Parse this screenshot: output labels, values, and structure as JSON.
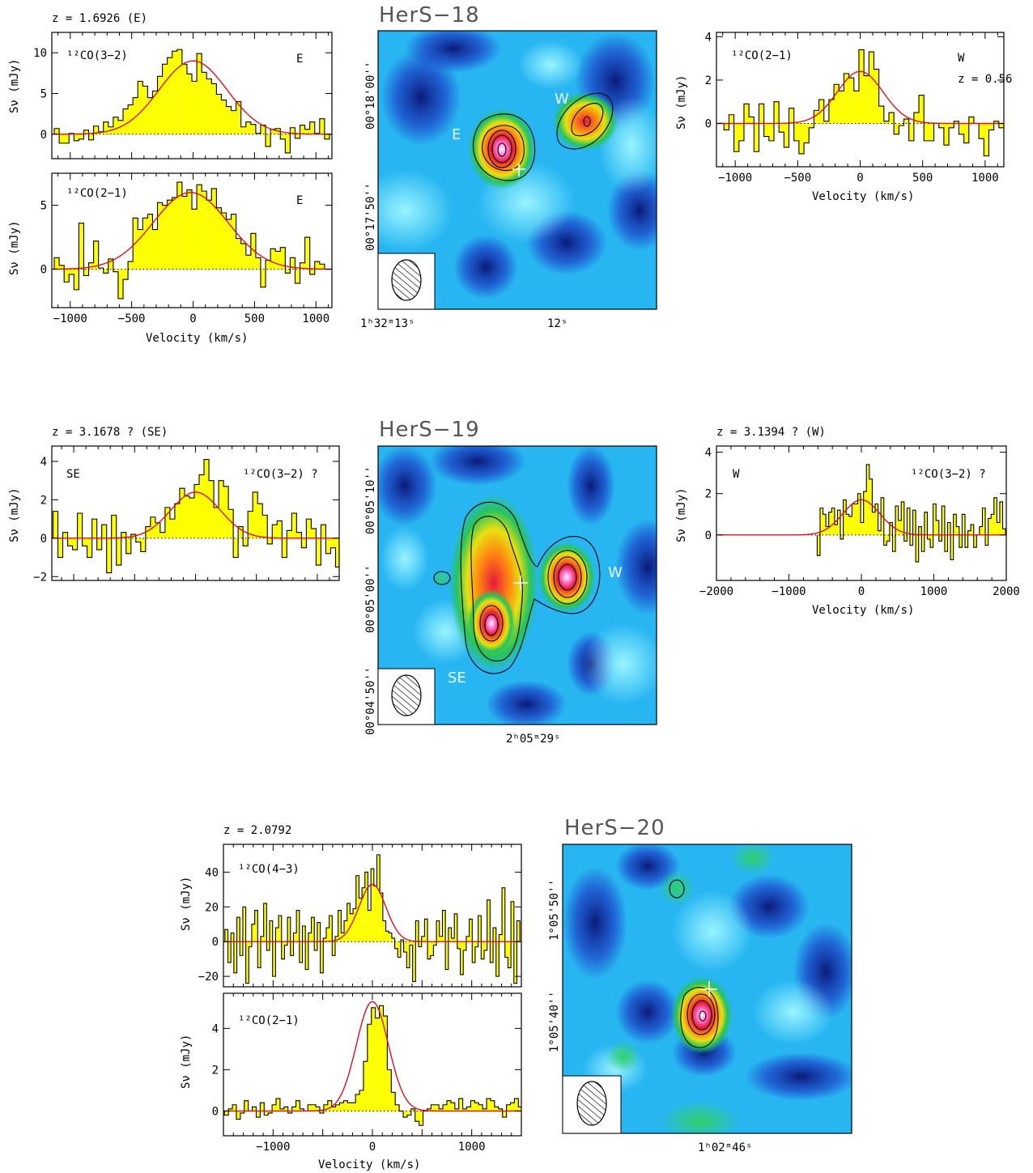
{
  "figure_blocks": [
    {
      "map": {
        "title": "HerS−18",
        "ylabels": [
          "00°18'00''",
          "00°17'50''"
        ],
        "xlabels": [
          "1ʰ32ᵐ13ˢ",
          "12ˢ"
        ],
        "source_labels": [
          "E",
          "W"
        ]
      },
      "spectra": [
        {
          "redshift": "z = 1.6926 (E)",
          "line": "¹²CO(3−2)",
          "component": "E",
          "ylabel": "Sν (mJy)"
        },
        {
          "redshift": "",
          "line": "¹²CO(2−1)",
          "component": "E",
          "ylabel": "Sν (mJy)",
          "xlabel": "Velocity (km/s)"
        },
        {
          "redshift": "",
          "line": "¹²CO(2−1)",
          "component": "W",
          "extra": "z = 0.56",
          "ylabel": "Sν (mJy)",
          "xlabel": "Velocity (km/s)"
        }
      ]
    },
    {
      "map": {
        "title": "HerS−19",
        "ylabels": [
          "00°05'10''",
          "00°05'00''",
          "00°04'50''"
        ],
        "xlabels": [
          "2ʰ05ᵐ29ˢ"
        ],
        "source_labels": [
          "W",
          "SE"
        ]
      },
      "spectra": [
        {
          "redshift": "z = 3.1678 ? (SE)",
          "line": "¹²CO(3−2) ?",
          "component": "SE",
          "ylabel": "Sν (mJy)"
        },
        {
          "redshift": "z = 3.1394 ? (W)",
          "line": "¹²CO(3−2) ?",
          "component": "W",
          "ylabel": "Sν (mJy)",
          "xlabel": "Velocity (km/s)"
        }
      ]
    },
    {
      "map": {
        "title": "HerS−20",
        "ylabels": [
          "1°05'50''",
          "1°05'40''"
        ],
        "xlabels": [
          "1ʰ02ᵐ46ˢ"
        ],
        "source_labels": []
      },
      "spectra": [
        {
          "redshift": "z = 2.0792",
          "line": "¹²CO(4−3)",
          "component": "",
          "ylabel": "Sν (mJy)"
        },
        {
          "redshift": "",
          "line": "¹²CO(2−1)",
          "component": "",
          "ylabel": "Sν (mJy)",
          "xlabel": "Velocity (km/s)"
        }
      ]
    }
  ],
  "chart_data": [
    {
      "type": "area",
      "title": "z = 1.6926 (E)",
      "series": [
        {
          "name": "¹²CO(3−2)"
        }
      ],
      "xlim": [
        -1150,
        1130
      ],
      "ylim": [
        -3,
        12.5
      ],
      "yticks": [
        0,
        5,
        10
      ],
      "xticks": [],
      "gauss": {
        "amp": 9,
        "center": 0,
        "fwhm": 650
      },
      "x": [
        -1110,
        -1070,
        -1030,
        -990,
        -950,
        -910,
        -870,
        -830,
        -790,
        -750,
        -710,
        -670,
        -630,
        -590,
        -550,
        -510,
        -470,
        -430,
        -390,
        -350,
        -310,
        -270,
        -230,
        -190,
        -150,
        -110,
        -70,
        -30,
        10,
        50,
        90,
        130,
        170,
        210,
        250,
        290,
        330,
        370,
        410,
        450,
        490,
        530,
        570,
        610,
        650,
        690,
        730,
        770,
        810,
        850,
        890,
        930,
        970,
        1010,
        1050,
        1090
      ],
      "y": [
        0.7,
        -1.1,
        -1.1,
        0.1,
        -0.8,
        -0.6,
        0.5,
        -0.7,
        1.0,
        0.3,
        1.5,
        0.9,
        2.1,
        1.7,
        3.1,
        3.6,
        4.5,
        6.5,
        5.9,
        4.5,
        5.3,
        7.1,
        8.6,
        9.4,
        10.2,
        10.4,
        8.6,
        7.4,
        6.5,
        9.9,
        7.6,
        6.8,
        6.2,
        4.9,
        4.2,
        3.4,
        2.9,
        4.0,
        0.9,
        1.5,
        1.2,
        0.1,
        1.1,
        -1.5,
        0.6,
        0.7,
        -0.6,
        -2.3,
        0.8,
        -0.5,
        1.1,
        0.6,
        1.5,
        0.1,
        1.9,
        -0.6
      ]
    },
    {
      "type": "area",
      "series": [
        {
          "name": "¹²CO(2−1)"
        }
      ],
      "xlim": [
        -1150,
        1130
      ],
      "ylim": [
        -3,
        7.5
      ],
      "yticks": [
        0,
        5
      ],
      "xticks": [
        -1000,
        -500,
        0,
        500,
        1000
      ],
      "gauss": {
        "amp": 6,
        "center": -20,
        "fwhm": 720
      },
      "x": [
        -1110,
        -1070,
        -1030,
        -990,
        -950,
        -910,
        -870,
        -830,
        -790,
        -750,
        -710,
        -670,
        -630,
        -590,
        -550,
        -510,
        -470,
        -430,
        -390,
        -350,
        -310,
        -270,
        -230,
        -190,
        -150,
        -110,
        -70,
        -30,
        10,
        50,
        90,
        130,
        170,
        210,
        250,
        290,
        330,
        370,
        410,
        450,
        490,
        530,
        570,
        610,
        650,
        690,
        730,
        770,
        810,
        850,
        890,
        930,
        970,
        1010,
        1050,
        1090
      ],
      "y": [
        0.9,
        0.3,
        -1.0,
        -0.4,
        -1.6,
        3.6,
        -0.5,
        0.5,
        2.2,
        0.1,
        -0.3,
        0.8,
        -0.2,
        -2.3,
        -0.8,
        0.6,
        4.0,
        3.1,
        4.0,
        4.3,
        3.1,
        5.2,
        5.0,
        5.4,
        5.6,
        6.8,
        5.7,
        6.2,
        4.7,
        6.6,
        6.1,
        5.4,
        6.3,
        4.8,
        4.4,
        3.9,
        4.3,
        2.4,
        2.0,
        1.1,
        2.8,
        0.9,
        -1.4,
        0.7,
        1.6,
        1.4,
        1.7,
        -0.3,
        0.9,
        -1.1,
        0.5,
        2.5,
        -0.4,
        0.6,
        0.4,
        0.0
      ]
    },
    {
      "type": "area",
      "series": [
        {
          "name": "¹²CO(2−1)"
        }
      ],
      "xlim": [
        -1150,
        1150
      ],
      "ylim": [
        -2,
        4.2
      ],
      "yticks": [
        0,
        2,
        4
      ],
      "xticks": [
        -1000,
        -500,
        0,
        500,
        1000
      ],
      "gauss": {
        "amp": 2.4,
        "center": 0,
        "fwhm": 430
      },
      "x": [
        -1110,
        -1070,
        -1030,
        -990,
        -950,
        -910,
        -870,
        -830,
        -790,
        -750,
        -710,
        -670,
        -630,
        -590,
        -550,
        -510,
        -470,
        -430,
        -390,
        -350,
        -310,
        -270,
        -230,
        -190,
        -150,
        -110,
        -70,
        -30,
        10,
        50,
        90,
        130,
        170,
        210,
        250,
        290,
        330,
        370,
        410,
        450,
        490,
        530,
        570,
        610,
        650,
        690,
        730,
        770,
        810,
        850,
        890,
        930,
        970,
        1010,
        1050,
        1090,
        1130
      ],
      "y": [
        0.0,
        -0.3,
        0.4,
        -1.3,
        -0.8,
        0.9,
        0.3,
        -1.3,
        0.9,
        -0.6,
        -0.8,
        1.0,
        -0.4,
        -1.1,
        0.7,
        -0.8,
        -1.4,
        -0.9,
        -0.2,
        0.6,
        1.1,
        0.1,
        1.1,
        1.8,
        1.5,
        2.3,
        2.1,
        1.5,
        3.4,
        2.2,
        3.3,
        2.5,
        0.8,
        0.1,
        0.5,
        -0.5,
        -0.1,
        0.2,
        -0.8,
        0.5,
        1.3,
        -0.8,
        -0.8,
        0.0,
        -0.2,
        -1.0,
        -0.2,
        0.1,
        -0.5,
        -0.9,
        0.3,
        0.0,
        -0.7,
        -1.5,
        -0.3,
        0.1,
        -0.2
      ]
    },
    {
      "type": "area",
      "title": "z = 3.1678 ? (SE)",
      "series": [
        {
          "name": "¹²CO(3−2) ?"
        }
      ],
      "xlim": [
        -1180,
        1180
      ],
      "ylim": [
        -2.2,
        4.8
      ],
      "yticks": [
        -2,
        0,
        2,
        4
      ],
      "xticks": [],
      "gauss": {
        "amp": 2.4,
        "center": 0,
        "fwhm": 480
      },
      "x": [
        -1150,
        -1110,
        -1070,
        -1030,
        -990,
        -950,
        -910,
        -870,
        -830,
        -790,
        -750,
        -710,
        -670,
        -630,
        -590,
        -550,
        -510,
        -470,
        -430,
        -390,
        -350,
        -310,
        -270,
        -230,
        -190,
        -150,
        -110,
        -70,
        -30,
        10,
        50,
        90,
        130,
        170,
        210,
        250,
        290,
        330,
        370,
        410,
        450,
        490,
        530,
        570,
        610,
        650,
        690,
        730,
        770,
        810,
        850,
        890,
        930,
        970,
        1010,
        1050,
        1090,
        1130,
        1170
      ],
      "y": [
        1.4,
        -1.0,
        0.3,
        -0.4,
        -0.6,
        1.3,
        -0.4,
        -1.0,
        1.0,
        -0.6,
        0.7,
        -1.8,
        1.2,
        -1.4,
        0.3,
        -0.8,
        0.2,
        -0.2,
        -0.7,
        0.6,
        1.1,
        0.8,
        0.3,
        1.6,
        1.0,
        1.8,
        2.6,
        2.2,
        2.1,
        2.8,
        3.3,
        4.1,
        3.0,
        1.6,
        3.0,
        2.7,
        1.5,
        -1.0,
        0.6,
        -0.4,
        1.4,
        2.4,
        1.8,
        1.2,
        -0.3,
        0.7,
        0.9,
        -1.0,
        0.4,
        1.3,
        0.3,
        -0.5,
        1.0,
        0.5,
        -1.4,
        0.7,
        -0.8,
        -0.5,
        -1.5
      ]
    },
    {
      "type": "area",
      "title": "z = 3.1394 ? (W)",
      "series": [
        {
          "name": "¹²CO(3−2) ?"
        }
      ],
      "xlim": [
        -2000,
        2000
      ],
      "ylim": [
        -2.2,
        4.3
      ],
      "yticks": [
        0,
        2,
        4
      ],
      "xticks": [
        -2000,
        -1000,
        0,
        1000,
        2000
      ],
      "gauss": {
        "amp": 1.7,
        "center": 0,
        "fwhm": 600
      },
      "x": [
        -590,
        -550,
        -510,
        -470,
        -430,
        -390,
        -350,
        -310,
        -270,
        -230,
        -190,
        -150,
        -110,
        -70,
        -30,
        10,
        50,
        90,
        130,
        170,
        210,
        250,
        290,
        330,
        370,
        410,
        450,
        490,
        530,
        570,
        610,
        650,
        690,
        730,
        770,
        810,
        850,
        890,
        930,
        970,
        1010,
        1050,
        1090,
        1130,
        1170,
        1210,
        1250,
        1290,
        1330,
        1370,
        1410,
        1450,
        1490,
        1530,
        1570,
        1610,
        1650,
        1690,
        1730,
        1770,
        1810,
        1850,
        1890,
        1930,
        1970
      ],
      "y": [
        -1.0,
        1.3,
        1.0,
        0.4,
        1.1,
        1.3,
        0.5,
        1.2,
        -0.2,
        1.7,
        1.0,
        0.9,
        1.5,
        1.5,
        2.0,
        0.6,
        2.1,
        3.4,
        2.7,
        1.1,
        1.5,
        0.2,
        1.8,
        -0.5,
        -0.3,
        0.6,
        -0.8,
        1.4,
        0.7,
        1.6,
        -0.3,
        1.3,
        -0.5,
        1.2,
        -1.3,
        0.4,
        -0.8,
        1.1,
        -0.2,
        -0.6,
        1.5,
        0.7,
        -0.3,
        1.4,
        -0.8,
        0.6,
        -1.2,
        1.0,
        0.4,
        -0.6,
        1.0,
        -0.6,
        0.2,
        0.5,
        -0.6,
        0.0,
        0.4,
        1.3,
        -0.5,
        0.8,
        1.0,
        1.8,
        0.6,
        1.6,
        0.3
      ]
    },
    {
      "type": "area",
      "title": "z = 2.0792",
      "series": [
        {
          "name": "¹²CO(4−3)"
        }
      ],
      "xlim": [
        -1500,
        1500
      ],
      "ylim": [
        -26,
        56
      ],
      "yticks": [
        -20,
        0,
        20,
        40
      ],
      "xticks": [],
      "gauss": {
        "amp": 33,
        "center": 0,
        "fwhm": 320
      },
      "x": [
        -1470,
        -1440,
        -1410,
        -1380,
        -1350,
        -1320,
        -1290,
        -1260,
        -1230,
        -1200,
        -1170,
        -1140,
        -1110,
        -1080,
        -1050,
        -1020,
        -990,
        -960,
        -930,
        -900,
        -870,
        -840,
        -810,
        -780,
        -750,
        -720,
        -690,
        -660,
        -630,
        -600,
        -570,
        -540,
        -510,
        -480,
        -450,
        -420,
        -390,
        -360,
        -330,
        -300,
        -270,
        -240,
        -210,
        -180,
        -150,
        -120,
        -90,
        -60,
        -30,
        0,
        30,
        60,
        90,
        120,
        150,
        180,
        210,
        240,
        270,
        300,
        330,
        360,
        390,
        420,
        450,
        480,
        510,
        540,
        570,
        600,
        630,
        660,
        690,
        720,
        750,
        780,
        810,
        840,
        870,
        900,
        930,
        960,
        990,
        1020,
        1050,
        1080,
        1110,
        1140,
        1170,
        1200,
        1230,
        1260,
        1290,
        1320,
        1350,
        1380,
        1410,
        1440,
        1470
      ],
      "y": [
        7,
        -12,
        5,
        -18,
        14,
        -8,
        20,
        -24,
        -3,
        10,
        18,
        -15,
        3,
        22,
        -5,
        12,
        -20,
        8,
        15,
        -10,
        -2,
        14,
        -8,
        5,
        18,
        -12,
        9,
        -16,
        5,
        14,
        -5,
        11,
        -18,
        2,
        8,
        15,
        -8,
        3,
        18,
        5,
        12,
        22,
        16,
        19,
        38,
        25,
        31,
        40,
        18,
        42,
        32,
        50,
        28,
        12,
        6,
        5,
        2,
        -4,
        -9,
        1,
        -6,
        -15,
        -2,
        -23,
        12,
        -3,
        3,
        13,
        -10,
        -8,
        -2,
        12,
        3,
        18,
        -16,
        8,
        2,
        16,
        -4,
        -19,
        -5,
        3,
        13,
        -12,
        -3,
        15,
        -10,
        -5,
        24,
        -12,
        8,
        -20,
        4,
        31,
        -9,
        -15,
        23,
        -24,
        12
      ]
    },
    {
      "type": "area",
      "series": [
        {
          "name": "¹²CO(2−1)"
        }
      ],
      "xlim": [
        -1500,
        1500
      ],
      "ylim": [
        -1.2,
        5.7
      ],
      "yticks": [
        0,
        2,
        4
      ],
      "xticks": [
        -1000,
        0,
        1000
      ],
      "gauss": {
        "amp": 5.3,
        "center": 0,
        "fwhm": 380
      },
      "x": [
        -1470,
        -1430,
        -1390,
        -1350,
        -1310,
        -1270,
        -1230,
        -1190,
        -1150,
        -1110,
        -1070,
        -1030,
        -990,
        -950,
        -910,
        -870,
        -830,
        -790,
        -750,
        -710,
        -670,
        -630,
        -590,
        -550,
        -510,
        -470,
        -430,
        -390,
        -350,
        -310,
        -270,
        -230,
        -190,
        -150,
        -110,
        -70,
        -30,
        10,
        50,
        90,
        130,
        170,
        210,
        250,
        290,
        330,
        370,
        410,
        450,
        490,
        530,
        570,
        610,
        650,
        690,
        730,
        770,
        810,
        850,
        890,
        930,
        970,
        1010,
        1050,
        1090,
        1130,
        1170,
        1210,
        1250,
        1290,
        1330,
        1370,
        1410,
        1450,
        1490
      ],
      "y": [
        -0.2,
        0.1,
        0.3,
        -0.4,
        -0.1,
        0.5,
        0.0,
        0.2,
        -0.3,
        0.4,
        -0.2,
        -0.1,
        0.3,
        0.6,
        0.1,
        0.2,
        -0.1,
        0.2,
        0.5,
        0.1,
        0.0,
        0.3,
        0.3,
        0.2,
        -0.1,
        0.3,
        0.5,
        0.2,
        0.3,
        0.4,
        0.5,
        0.4,
        0.4,
        0.8,
        1.0,
        2.4,
        4.2,
        5.0,
        4.5,
        5.1,
        4.6,
        2.0,
        0.9,
        0.3,
        0.0,
        -0.3,
        -0.2,
        0.1,
        -0.5,
        -0.7,
        0.0,
        0.1,
        0.3,
        0.3,
        0.1,
        0.3,
        0.5,
        0.4,
        0.1,
        0.6,
        0.1,
        0.2,
        0.5,
        0.4,
        0.3,
        0.1,
        0.6,
        0.5,
        0.2,
        0.1,
        -0.3,
        0.3,
        0.4,
        0.6,
        0.2
      ]
    }
  ],
  "colors": {
    "fill": "#ffff00",
    "fit": "#e0101a",
    "axis": "#000000"
  }
}
